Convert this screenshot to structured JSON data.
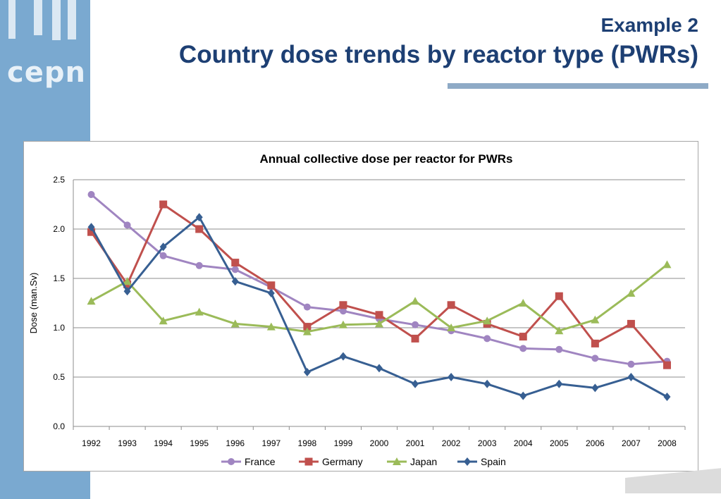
{
  "slide": {
    "logo": "cepn",
    "subtitle": "Example 2",
    "title": "Country dose trends by reactor type (PWRs)"
  },
  "chart_data": {
    "type": "line",
    "title": "Annual collective dose per reactor for PWRs",
    "xlabel": "",
    "ylabel": "Dose (man.Sv)",
    "ylim": [
      0,
      2.5
    ],
    "yticks": [
      "0.0",
      "0.5",
      "1.0",
      "1.5",
      "2.0",
      "2.5"
    ],
    "grid": true,
    "legend_position": "bottom",
    "categories": [
      "1992",
      "1993",
      "1994",
      "1995",
      "1996",
      "1997",
      "1998",
      "1999",
      "2000",
      "2001",
      "2002",
      "2003",
      "2004",
      "2005",
      "2006",
      "2007",
      "2008"
    ],
    "series": [
      {
        "name": "France",
        "color": "#a085c1",
        "marker": "circle",
        "values": [
          2.35,
          2.04,
          1.73,
          1.63,
          1.59,
          1.41,
          1.21,
          1.17,
          1.09,
          1.03,
          0.97,
          0.89,
          0.79,
          0.78,
          0.69,
          0.63,
          0.66
        ]
      },
      {
        "name": "Germany",
        "color": "#c0504d",
        "marker": "square",
        "values": [
          1.97,
          1.44,
          2.25,
          2.0,
          1.66,
          1.43,
          1.01,
          1.23,
          1.13,
          0.89,
          1.23,
          1.04,
          0.91,
          1.32,
          0.84,
          1.04,
          0.62
        ]
      },
      {
        "name": "Japan",
        "color": "#9bbb59",
        "marker": "triangle",
        "values": [
          1.27,
          1.47,
          1.07,
          1.16,
          1.04,
          1.01,
          0.96,
          1.03,
          1.04,
          1.27,
          1.0,
          1.07,
          1.25,
          0.97,
          1.08,
          1.35,
          1.64
        ]
      },
      {
        "name": "Spain",
        "color": "#375f92",
        "marker": "diamond",
        "values": [
          2.02,
          1.37,
          1.82,
          2.12,
          1.47,
          1.35,
          0.55,
          0.71,
          0.59,
          0.43,
          0.5,
          0.43,
          0.31,
          0.43,
          0.39,
          0.5,
          0.3
        ]
      }
    ]
  }
}
